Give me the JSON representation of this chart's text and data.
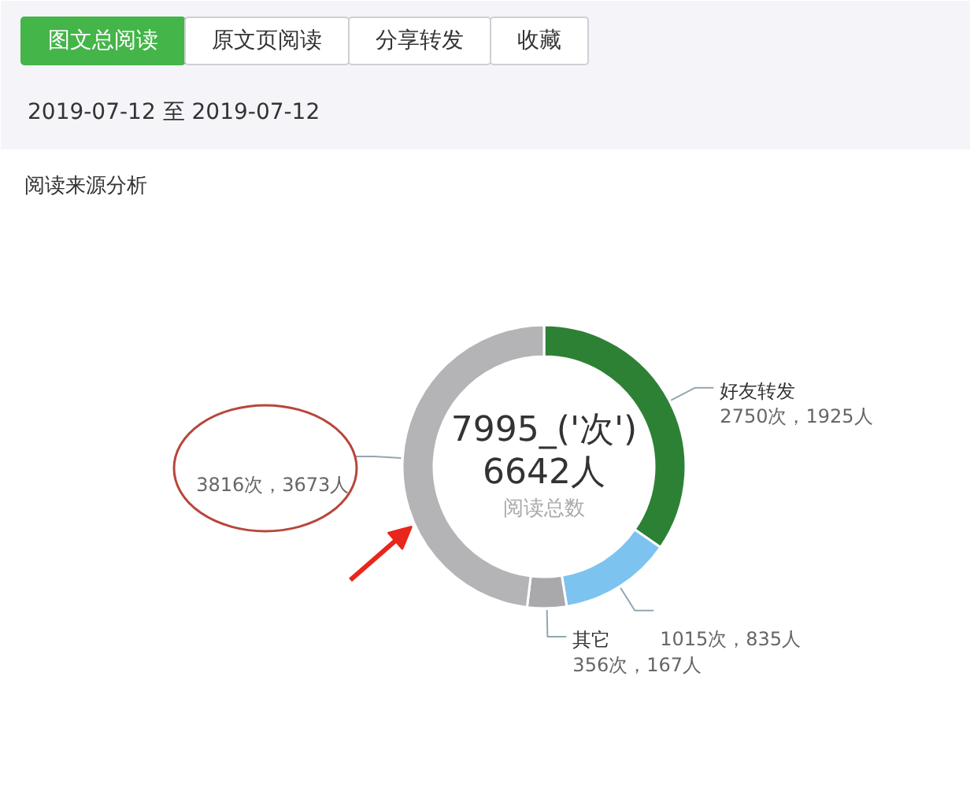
{
  "chart_data": [
    {
      "type": "other",
      "annotations": [
        "图文总阅读",
        "原文页阅读",
        "分享转发",
        "收藏",
        "2019-07-12 至 2019-07-12"
      ]
    },
    {
      "type": "donut",
      "title": "阅读来源分析",
      "categories": [
        "好友转发",
        null,
        "其它",
        null
      ],
      "values": [
        2750,
        1015,
        356,
        3816
      ],
      "colors": [
        "#2d8135",
        "#7cc3f0",
        "#a9a8ab",
        "#b4b3b6"
      ],
      "value_labels": [
        "2750次，1925人",
        "1015次，835人",
        "356次，167人",
        "3816次，3673人"
      ],
      "annotations": [
        "7995_('次')",
        "6642人",
        "阅读总数"
      ]
    }
  ]
}
